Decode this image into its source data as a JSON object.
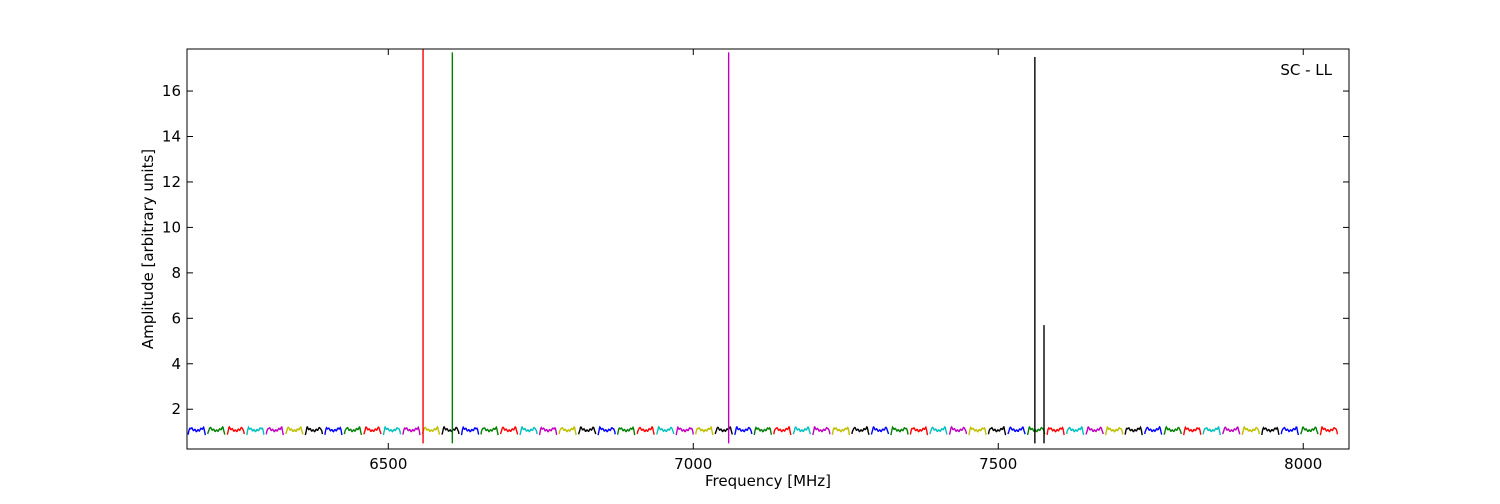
{
  "chart_data": {
    "type": "line",
    "title": "",
    "annotation": "SC - LL",
    "xlabel": "Frequency [MHz]",
    "ylabel": "Amplitude [arbitrary units]",
    "xlim": [
      6170,
      8075
    ],
    "ylim": [
      0.25,
      17.85
    ],
    "xticks": [
      6500,
      7000,
      7500,
      8000
    ],
    "xtick_labels": [
      "6500",
      "7000",
      "7500",
      "8000"
    ],
    "yticks": [
      2,
      4,
      6,
      8,
      10,
      12,
      14,
      16
    ],
    "ytick_labels": [
      "2",
      "4",
      "6",
      "8",
      "10",
      "12",
      "14",
      "16"
    ],
    "grid": false,
    "legend": "none",
    "series_colors": [
      "#0000ff",
      "#008000",
      "#ff0000",
      "#00bfbf",
      "#bf00bf",
      "#bfbf00",
      "#000000"
    ],
    "passband": {
      "first_center": 6186,
      "channel_spacing": 32,
      "channel_count": 59,
      "edge_level": 0.5,
      "shoulder_level": 1.3,
      "dip_level": 1.05
    },
    "spikes": [
      {
        "x": 6557,
        "y": 17.85,
        "color": "#ff0000"
      },
      {
        "x": 6605,
        "y": 17.7,
        "color": "#008000"
      },
      {
        "x": 7058,
        "y": 17.7,
        "color": "#bf00bf"
      },
      {
        "x": 7560,
        "y": 17.5,
        "color": "#000000"
      },
      {
        "x": 7575,
        "y": 5.7,
        "color": "#000000"
      }
    ]
  }
}
